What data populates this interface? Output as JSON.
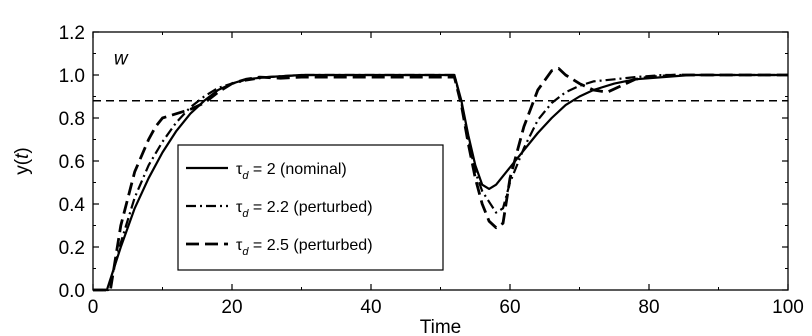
{
  "chart_data": {
    "type": "line",
    "xlabel": "Time",
    "ylabel": {
      "prefix": "y(",
      "italic": "t",
      "suffix": ")"
    },
    "xlim": [
      0,
      100
    ],
    "ylim": [
      0.0,
      1.2
    ],
    "x_ticks": [
      0,
      20,
      40,
      60,
      80,
      100
    ],
    "x_tick_labels": [
      "0",
      "20",
      "40",
      "60",
      "80",
      "100"
    ],
    "y_ticks": [
      0.0,
      0.2,
      0.4,
      0.6,
      0.8,
      1.0,
      1.2
    ],
    "y_tick_labels": [
      "0.0",
      "0.2",
      "0.4",
      "0.6",
      "0.8",
      "1.0",
      "1.2"
    ],
    "grid": false,
    "legend_position": "lower-left",
    "annotation": "w",
    "reference_line": {
      "y": 0.88,
      "style": "dashed"
    },
    "series": [
      {
        "name": "τd = 2 (nominal)",
        "label_main": "τ",
        "label_sub": "d",
        "label_rest": " = 2 (nominal)",
        "style": "solid",
        "points": [
          [
            0,
            0
          ],
          [
            2,
            0
          ],
          [
            4,
            0.2
          ],
          [
            6,
            0.38
          ],
          [
            8,
            0.52
          ],
          [
            10,
            0.64
          ],
          [
            12,
            0.74
          ],
          [
            14,
            0.82
          ],
          [
            16,
            0.88
          ],
          [
            18,
            0.93
          ],
          [
            20,
            0.96
          ],
          [
            22,
            0.98
          ],
          [
            25,
            0.99
          ],
          [
            30,
            1.0
          ],
          [
            40,
            1.0
          ],
          [
            50,
            1.0
          ],
          [
            52,
            1.0
          ],
          [
            53,
            0.88
          ],
          [
            54,
            0.72
          ],
          [
            55,
            0.58
          ],
          [
            56,
            0.49
          ],
          [
            57,
            0.47
          ],
          [
            58,
            0.49
          ],
          [
            60,
            0.57
          ],
          [
            62,
            0.65
          ],
          [
            64,
            0.73
          ],
          [
            66,
            0.8
          ],
          [
            68,
            0.86
          ],
          [
            70,
            0.9
          ],
          [
            72,
            0.93
          ],
          [
            75,
            0.96
          ],
          [
            78,
            0.98
          ],
          [
            82,
            0.99
          ],
          [
            86,
            1.0
          ],
          [
            100,
            1.0
          ]
        ]
      },
      {
        "name": "τd = 2.2 (perturbed)",
        "label_main": "τ",
        "label_sub": "d",
        "label_rest": " = 2.2 (perturbed)",
        "style": "dashdot",
        "points": [
          [
            0,
            0
          ],
          [
            2.2,
            0
          ],
          [
            4,
            0.22
          ],
          [
            6,
            0.43
          ],
          [
            8,
            0.58
          ],
          [
            10,
            0.69
          ],
          [
            12,
            0.78
          ],
          [
            14,
            0.85
          ],
          [
            16,
            0.9
          ],
          [
            18,
            0.94
          ],
          [
            20,
            0.96
          ],
          [
            22,
            0.975
          ],
          [
            25,
            0.99
          ],
          [
            30,
            1.0
          ],
          [
            40,
            1.0
          ],
          [
            50,
            1.0
          ],
          [
            52,
            1.0
          ],
          [
            53,
            0.87
          ],
          [
            54,
            0.7
          ],
          [
            55,
            0.55
          ],
          [
            56,
            0.46
          ],
          [
            57,
            0.41
          ],
          [
            58,
            0.36
          ],
          [
            59,
            0.38
          ],
          [
            60,
            0.5
          ],
          [
            62,
            0.66
          ],
          [
            64,
            0.79
          ],
          [
            66,
            0.87
          ],
          [
            68,
            0.92
          ],
          [
            70,
            0.95
          ],
          [
            72,
            0.97
          ],
          [
            75,
            0.98
          ],
          [
            78,
            0.99
          ],
          [
            82,
            1.0
          ],
          [
            100,
            1.0
          ]
        ]
      },
      {
        "name": "τd = 2.5 (perturbed)",
        "label_main": "τ",
        "label_sub": "d",
        "label_rest": " = 2.5 (perturbed)",
        "style": "dashed",
        "points": [
          [
            0,
            0
          ],
          [
            2.5,
            0
          ],
          [
            4,
            0.3
          ],
          [
            6,
            0.55
          ],
          [
            8,
            0.7
          ],
          [
            9,
            0.76
          ],
          [
            10,
            0.8
          ],
          [
            12,
            0.82
          ],
          [
            14,
            0.84
          ],
          [
            16,
            0.87
          ],
          [
            18,
            0.92
          ],
          [
            20,
            0.96
          ],
          [
            22,
            0.98
          ],
          [
            24,
            0.99
          ],
          [
            27,
            0.985
          ],
          [
            30,
            0.99
          ],
          [
            40,
            0.99
          ],
          [
            50,
            0.99
          ],
          [
            52,
            0.99
          ],
          [
            53,
            0.86
          ],
          [
            54,
            0.68
          ],
          [
            55,
            0.52
          ],
          [
            56,
            0.4
          ],
          [
            57,
            0.32
          ],
          [
            58,
            0.29
          ],
          [
            59,
            0.31
          ],
          [
            60,
            0.52
          ],
          [
            62,
            0.76
          ],
          [
            64,
            0.93
          ],
          [
            66,
            1.02
          ],
          [
            67,
            1.03
          ],
          [
            68,
            1.0
          ],
          [
            70,
            0.96
          ],
          [
            72,
            0.93
          ],
          [
            74,
            0.92
          ],
          [
            76,
            0.95
          ],
          [
            78,
            0.98
          ],
          [
            80,
            0.99
          ],
          [
            84,
            1.0
          ],
          [
            100,
            1.0
          ]
        ]
      }
    ]
  }
}
